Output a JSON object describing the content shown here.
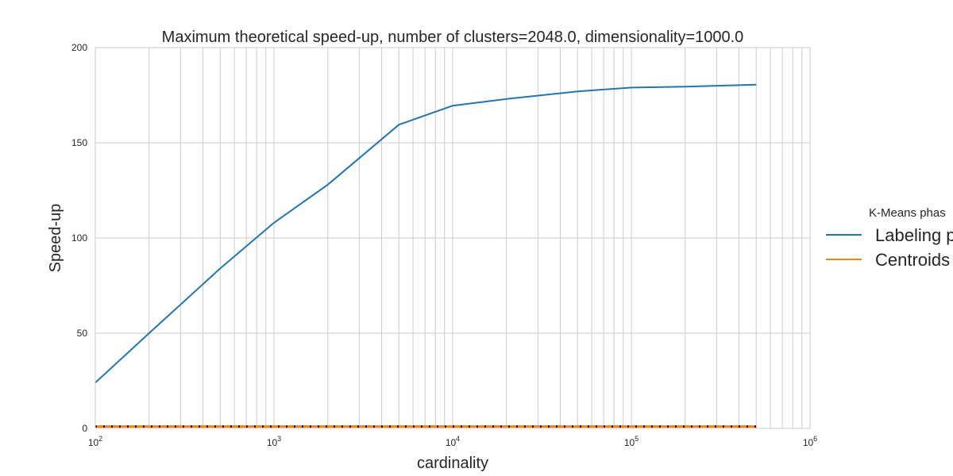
{
  "chart_data": {
    "type": "line",
    "title": "Maximum theoretical speed-up, number of clusters=2048.0, dimensionality=1000.0",
    "xlabel": "cardinality",
    "ylabel": "Speed-up",
    "xscale": "log",
    "xlim": [
      100,
      1000000
    ],
    "ylim": [
      0,
      200
    ],
    "yticks": [
      0,
      50,
      100,
      150,
      200
    ],
    "xtick_labels": [
      {
        "value": 100,
        "base": "10",
        "exp": "2"
      },
      {
        "value": 1000,
        "base": "10",
        "exp": "3"
      },
      {
        "value": 10000,
        "base": "10",
        "exp": "4"
      },
      {
        "value": 100000,
        "base": "10",
        "exp": "5"
      },
      {
        "value": 1000000,
        "base": "10",
        "exp": "6"
      }
    ],
    "grid": true,
    "legend": {
      "title": "K-Means phas",
      "placement": "right-outside"
    },
    "series": [
      {
        "name": "Labeling p",
        "color": "#1f77b4",
        "x": [
          100,
          200,
          500,
          1000,
          2000,
          5000,
          10000,
          20000,
          50000,
          100000,
          200000,
          500000
        ],
        "y": [
          24,
          50,
          84,
          108,
          128,
          159.5,
          169.5,
          173,
          177,
          179,
          179.5,
          180.5
        ]
      },
      {
        "name": "Centroids",
        "color": "#ff7f0e",
        "x": [
          100,
          200,
          500,
          1000,
          2000,
          5000,
          10000,
          20000,
          50000,
          100000,
          200000,
          500000
        ],
        "y": [
          1,
          1,
          1,
          1,
          1,
          1,
          1,
          1,
          1,
          1,
          1,
          1
        ]
      }
    ],
    "reference_line": {
      "y": 1,
      "color": "#000000",
      "style": "dotted"
    }
  }
}
